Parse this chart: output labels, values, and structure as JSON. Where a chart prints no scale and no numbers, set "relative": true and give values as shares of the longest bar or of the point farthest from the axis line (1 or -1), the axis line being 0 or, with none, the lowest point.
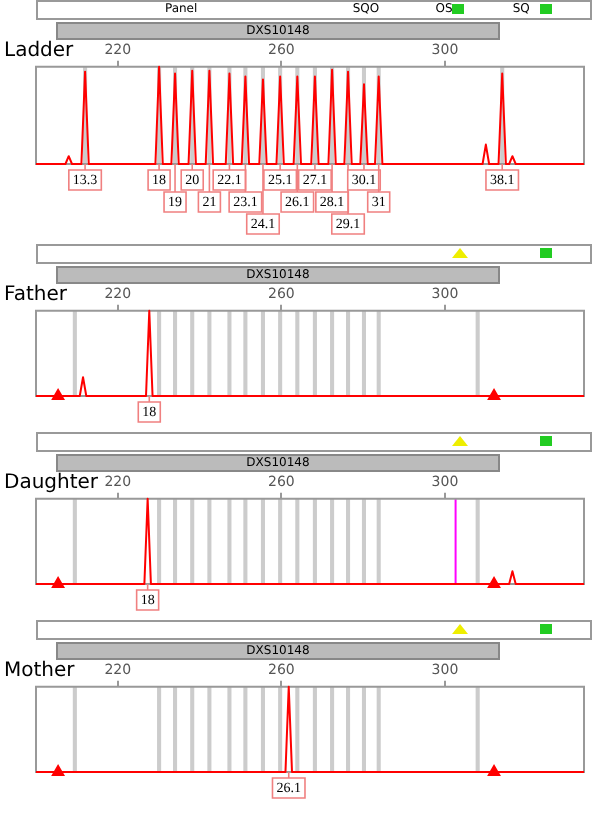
{
  "chart_data": [
    {
      "type": "line",
      "title": "Ladder",
      "subtitle": "DXS10148",
      "relative": true,
      "legend": false,
      "grid": false,
      "xlim": [
        200,
        334
      ],
      "xticks": [
        220,
        260,
        300
      ],
      "annotations": [
        "Panel",
        "SQO",
        "OS",
        "SQ",
        {
          "text": "13.3",
          "x": 212,
          "y": 0
        },
        {
          "text": "18",
          "x": 230.1,
          "y": 0
        },
        {
          "text": "19",
          "x": 234,
          "y": 0
        },
        {
          "text": "20",
          "x": 238.2,
          "y": 0
        },
        {
          "text": "21",
          "x": 242.4,
          "y": 0
        },
        {
          "text": "22.1",
          "x": 247.3,
          "y": 0
        },
        {
          "text": "23.1",
          "x": 251.2,
          "y": 0
        },
        {
          "text": "24.1",
          "x": 255.5,
          "y": 0
        },
        {
          "text": "25.1",
          "x": 259.7,
          "y": 0
        },
        {
          "text": "26.1",
          "x": 263.9,
          "y": 0
        },
        {
          "text": "27.1",
          "x": 268.2,
          "y": 0
        },
        {
          "text": "28.1",
          "x": 272.4,
          "y": 0
        },
        {
          "text": "29.1",
          "x": 276.3,
          "y": 0
        },
        {
          "text": "30.1",
          "x": 280.2,
          "y": 0
        },
        {
          "text": "31",
          "x": 283.8,
          "y": 0
        },
        {
          "text": "38.1",
          "x": 314,
          "y": 0
        }
      ],
      "bands": [
        {
          "axis": "x",
          "from": 211.5,
          "to": 212.5,
          "color": "#cccccc"
        },
        {
          "axis": "x",
          "from": 229.6,
          "to": 230.6,
          "color": "#cccccc"
        },
        {
          "axis": "x",
          "from": 233.5,
          "to": 234.5,
          "color": "#cccccc"
        },
        {
          "axis": "x",
          "from": 237.7,
          "to": 238.7,
          "color": "#cccccc"
        },
        {
          "axis": "x",
          "from": 241.9,
          "to": 242.9,
          "color": "#cccccc"
        },
        {
          "axis": "x",
          "from": 246.8,
          "to": 247.8,
          "color": "#cccccc"
        },
        {
          "axis": "x",
          "from": 250.7,
          "to": 251.7,
          "color": "#cccccc"
        },
        {
          "axis": "x",
          "from": 255,
          "to": 256,
          "color": "#cccccc"
        },
        {
          "axis": "x",
          "from": 259.2,
          "to": 260.2,
          "color": "#cccccc"
        },
        {
          "axis": "x",
          "from": 263.4,
          "to": 264.4,
          "color": "#cccccc"
        },
        {
          "axis": "x",
          "from": 267.7,
          "to": 268.7,
          "color": "#cccccc"
        },
        {
          "axis": "x",
          "from": 271.9,
          "to": 272.9,
          "color": "#cccccc"
        },
        {
          "axis": "x",
          "from": 275.8,
          "to": 276.8,
          "color": "#cccccc"
        },
        {
          "axis": "x",
          "from": 279.7,
          "to": 280.7,
          "color": "#cccccc"
        },
        {
          "axis": "x",
          "from": 283.3,
          "to": 284.3,
          "color": "#cccccc"
        },
        {
          "axis": "x",
          "from": 313.5,
          "to": 314.5,
          "color": "#cccccc"
        }
      ],
      "series": [
        {
          "type": "line",
          "color": "#ff0000",
          "x": [
            200,
            207.2,
            208,
            208.8,
            211.1,
            212,
            212.9,
            229.2,
            230.1,
            231,
            233.1,
            234,
            234.9,
            237.3,
            238.2,
            239.1,
            241.5,
            242.4,
            243.3,
            246.4,
            247.3,
            248.2,
            250.3,
            251.2,
            252.1,
            254.6,
            255.5,
            256.4,
            258.8,
            259.7,
            260.6,
            263,
            263.9,
            264.8,
            267.3,
            268.2,
            269.1,
            271.5,
            272.4,
            273.3,
            275.4,
            276.3,
            277.2,
            279.3,
            280.2,
            281.1,
            282.9,
            283.8,
            284.7,
            309.2,
            310,
            310.8,
            313.1,
            314,
            314.9,
            315.7,
            316.5,
            317.3,
            334
          ],
          "values": [
            0,
            0,
            0.08,
            0,
            0,
            0.95,
            0,
            0,
            1,
            0,
            0,
            0.93,
            0,
            0,
            0.96,
            0,
            0,
            0.96,
            0,
            0,
            0.93,
            0,
            0,
            0.9,
            0,
            0,
            0.87,
            0,
            0,
            0.9,
            0,
            0,
            0.9,
            0,
            0,
            0.9,
            0,
            0,
            0.97,
            0,
            0,
            0.95,
            0,
            0,
            0.82,
            0,
            0,
            0.9,
            0,
            0,
            0.2,
            0,
            0,
            0.93,
            0,
            0,
            0.08,
            0,
            0
          ]
        }
      ]
    },
    {
      "type": "line",
      "title": "Father",
      "subtitle": "DXS10148",
      "relative": true,
      "legend": false,
      "grid": false,
      "xlim": [
        200,
        334
      ],
      "xticks": [
        220,
        260,
        300
      ],
      "annotations": [
        {
          "text": "18",
          "x": 227.7,
          "y": 0
        }
      ],
      "bands": [
        {
          "axis": "x",
          "from": 209,
          "to": 210,
          "color": "#cccccc"
        },
        {
          "axis": "x",
          "from": 229.6,
          "to": 230.6,
          "color": "#cccccc"
        },
        {
          "axis": "x",
          "from": 233.5,
          "to": 234.5,
          "color": "#cccccc"
        },
        {
          "axis": "x",
          "from": 237.7,
          "to": 238.7,
          "color": "#cccccc"
        },
        {
          "axis": "x",
          "from": 241.9,
          "to": 242.9,
          "color": "#cccccc"
        },
        {
          "axis": "x",
          "from": 246.8,
          "to": 247.8,
          "color": "#cccccc"
        },
        {
          "axis": "x",
          "from": 250.7,
          "to": 251.7,
          "color": "#cccccc"
        },
        {
          "axis": "x",
          "from": 255,
          "to": 256,
          "color": "#cccccc"
        },
        {
          "axis": "x",
          "from": 259.2,
          "to": 260.2,
          "color": "#cccccc"
        },
        {
          "axis": "x",
          "from": 263.4,
          "to": 264.4,
          "color": "#cccccc"
        },
        {
          "axis": "x",
          "from": 267.7,
          "to": 268.7,
          "color": "#cccccc"
        },
        {
          "axis": "x",
          "from": 271.9,
          "to": 272.9,
          "color": "#cccccc"
        },
        {
          "axis": "x",
          "from": 275.8,
          "to": 276.8,
          "color": "#cccccc"
        },
        {
          "axis": "x",
          "from": 279.7,
          "to": 280.7,
          "color": "#cccccc"
        },
        {
          "axis": "x",
          "from": 283.3,
          "to": 284.3,
          "color": "#cccccc"
        },
        {
          "axis": "x",
          "from": 307.5,
          "to": 308.5,
          "color": "#cccccc"
        }
      ],
      "series": [
        {
          "type": "line",
          "color": "#ff0000",
          "x": [
            200,
            210.7,
            211.5,
            212.3,
            226.9,
            227.7,
            228.5,
            334
          ],
          "values": [
            0,
            0,
            0.22,
            0,
            0,
            1,
            0,
            0
          ]
        },
        {
          "type": "scatter",
          "marker": "triangle",
          "color": "#ff0000",
          "x": [
            205.4,
            312
          ],
          "values": [
            0,
            0
          ]
        }
      ]
    },
    {
      "type": "line",
      "title": "Daughter",
      "subtitle": "DXS10148",
      "relative": true,
      "legend": false,
      "grid": false,
      "xlim": [
        200,
        334
      ],
      "xticks": [
        220,
        260,
        300
      ],
      "annotations": [
        {
          "text": "18",
          "x": 227.3,
          "y": 0
        }
      ],
      "ref_lines": [
        {
          "axis": "x",
          "value": 302.6,
          "color": "#ff00ff"
        }
      ],
      "bands": [
        {
          "axis": "x",
          "from": 209,
          "to": 210,
          "color": "#cccccc"
        },
        {
          "axis": "x",
          "from": 229.6,
          "to": 230.6,
          "color": "#cccccc"
        },
        {
          "axis": "x",
          "from": 233.5,
          "to": 234.5,
          "color": "#cccccc"
        },
        {
          "axis": "x",
          "from": 237.7,
          "to": 238.7,
          "color": "#cccccc"
        },
        {
          "axis": "x",
          "from": 241.9,
          "to": 242.9,
          "color": "#cccccc"
        },
        {
          "axis": "x",
          "from": 246.8,
          "to": 247.8,
          "color": "#cccccc"
        },
        {
          "axis": "x",
          "from": 250.7,
          "to": 251.7,
          "color": "#cccccc"
        },
        {
          "axis": "x",
          "from": 255,
          "to": 256,
          "color": "#cccccc"
        },
        {
          "axis": "x",
          "from": 259.2,
          "to": 260.2,
          "color": "#cccccc"
        },
        {
          "axis": "x",
          "from": 263.4,
          "to": 264.4,
          "color": "#cccccc"
        },
        {
          "axis": "x",
          "from": 267.7,
          "to": 268.7,
          "color": "#cccccc"
        },
        {
          "axis": "x",
          "from": 271.9,
          "to": 272.9,
          "color": "#cccccc"
        },
        {
          "axis": "x",
          "from": 275.8,
          "to": 276.8,
          "color": "#cccccc"
        },
        {
          "axis": "x",
          "from": 279.7,
          "to": 280.7,
          "color": "#cccccc"
        },
        {
          "axis": "x",
          "from": 283.3,
          "to": 284.3,
          "color": "#cccccc"
        },
        {
          "axis": "x",
          "from": 307.5,
          "to": 308.5,
          "color": "#cccccc"
        }
      ],
      "series": [
        {
          "type": "line",
          "color": "#ff0000",
          "x": [
            200,
            226.5,
            227.3,
            228.1,
            315.7,
            316.5,
            317.3,
            334
          ],
          "values": [
            0,
            0,
            1,
            0,
            0,
            0.15,
            0,
            0
          ]
        },
        {
          "type": "scatter",
          "marker": "triangle",
          "color": "#ff0000",
          "x": [
            205.4,
            312
          ],
          "values": [
            0,
            0
          ]
        }
      ]
    },
    {
      "type": "line",
      "title": "Mother",
      "subtitle": "DXS10148",
      "relative": true,
      "legend": false,
      "grid": false,
      "xlim": [
        200,
        334
      ],
      "xticks": [
        220,
        260,
        300
      ],
      "annotations": [
        {
          "text": "26.1",
          "x": 261.8,
          "y": 0
        }
      ],
      "bands": [
        {
          "axis": "x",
          "from": 209,
          "to": 210,
          "color": "#cccccc"
        },
        {
          "axis": "x",
          "from": 229.6,
          "to": 230.6,
          "color": "#cccccc"
        },
        {
          "axis": "x",
          "from": 233.5,
          "to": 234.5,
          "color": "#cccccc"
        },
        {
          "axis": "x",
          "from": 237.7,
          "to": 238.7,
          "color": "#cccccc"
        },
        {
          "axis": "x",
          "from": 241.9,
          "to": 242.9,
          "color": "#cccccc"
        },
        {
          "axis": "x",
          "from": 246.8,
          "to": 247.8,
          "color": "#cccccc"
        },
        {
          "axis": "x",
          "from": 250.7,
          "to": 251.7,
          "color": "#cccccc"
        },
        {
          "axis": "x",
          "from": 255,
          "to": 256,
          "color": "#cccccc"
        },
        {
          "axis": "x",
          "from": 259.2,
          "to": 260.2,
          "color": "#cccccc"
        },
        {
          "axis": "x",
          "from": 263.4,
          "to": 264.4,
          "color": "#cccccc"
        },
        {
          "axis": "x",
          "from": 267.7,
          "to": 268.7,
          "color": "#cccccc"
        },
        {
          "axis": "x",
          "from": 271.9,
          "to": 272.9,
          "color": "#cccccc"
        },
        {
          "axis": "x",
          "from": 275.8,
          "to": 276.8,
          "color": "#cccccc"
        },
        {
          "axis": "x",
          "from": 279.7,
          "to": 280.7,
          "color": "#cccccc"
        },
        {
          "axis": "x",
          "from": 283.3,
          "to": 284.3,
          "color": "#cccccc"
        },
        {
          "axis": "x",
          "from": 307.5,
          "to": 308.5,
          "color": "#cccccc"
        }
      ],
      "series": [
        {
          "type": "line",
          "color": "#ff0000",
          "x": [
            200,
            261,
            261.8,
            262.6,
            334
          ],
          "values": [
            0,
            0,
            1,
            0,
            0
          ]
        },
        {
          "type": "scatter",
          "marker": "triangle",
          "color": "#ff0000",
          "x": [
            205.4,
            312
          ],
          "values": [
            0,
            0
          ]
        }
      ]
    }
  ]
}
